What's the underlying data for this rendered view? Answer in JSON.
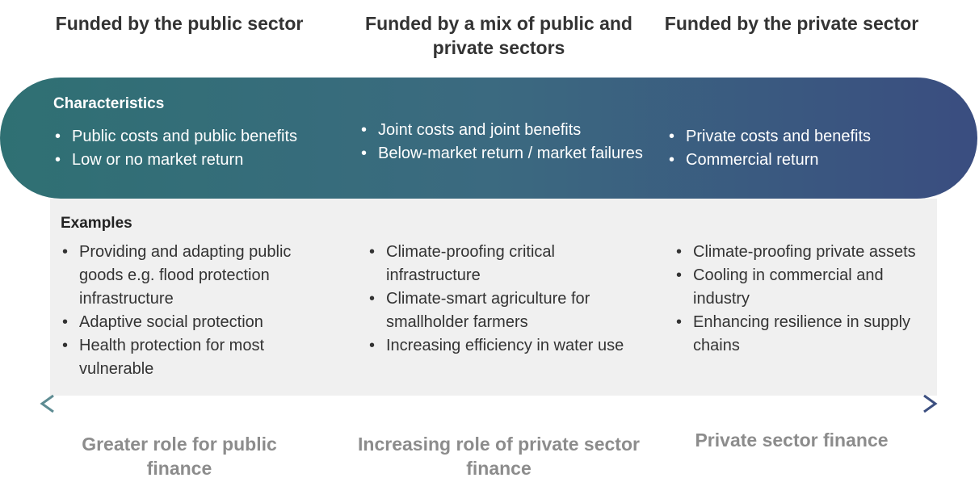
{
  "characteristics_label": "Characteristics",
  "examples_label": "Examples",
  "columns": [
    {
      "heading": "Funded by the public sector",
      "characteristics": [
        "Public costs and public benefits",
        "Low or no market return"
      ],
      "examples": [
        "Providing and adapting public goods e.g. flood protection infrastructure",
        "Adaptive social protection",
        "Health protection for most vulnerable"
      ],
      "role": "Greater role for public finance"
    },
    {
      "heading": "Funded by a mix of public and private sectors",
      "characteristics": [
        "Joint costs and joint benefits",
        "Below-market return / market failures"
      ],
      "examples": [
        "Climate-proofing critical infrastructure",
        "Climate-smart agriculture for smallholder farmers",
        "Increasing efficiency in water use"
      ],
      "role": "Increasing role of private sector finance"
    },
    {
      "heading": "Funded by the private sector",
      "characteristics": [
        "Private costs and benefits",
        "Commercial return"
      ],
      "examples": [
        "Climate-proofing private assets",
        "Cooling in commercial and industry",
        "Enhancing resilience in supply chains"
      ],
      "role": "Private sector finance"
    }
  ]
}
